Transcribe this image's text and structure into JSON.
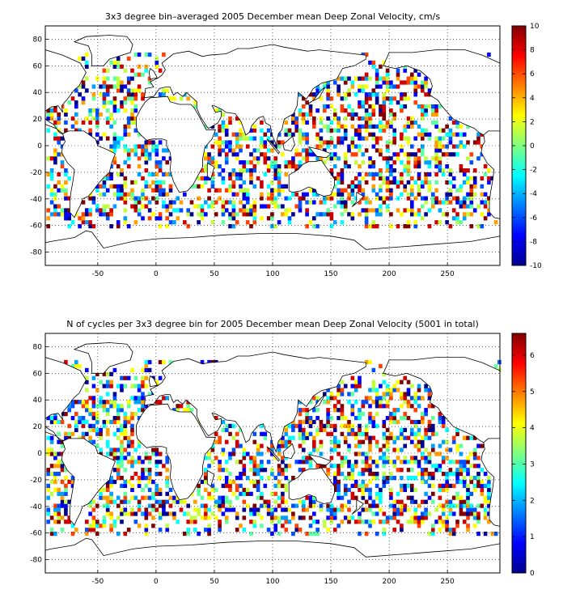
{
  "chart_data": [
    {
      "type": "heatmap",
      "title": "3x3 degree bin–averaged 2005 December mean Deep Zonal Velocity, cm/s",
      "xlabel": "",
      "ylabel": "",
      "xlim": [
        -95,
        295
      ],
      "ylim": [
        -90,
        90
      ],
      "x_ticks": [
        -50,
        0,
        50,
        100,
        150,
        200,
        250
      ],
      "y_ticks": [
        80,
        60,
        40,
        20,
        0,
        -20,
        -40,
        -60,
        -80
      ],
      "grid": true,
      "bin_size_deg": 3,
      "colorbar": {
        "range": [
          -10,
          10
        ],
        "ticks": [
          10,
          8,
          6,
          4,
          2,
          0,
          -2,
          -4,
          -6,
          -8,
          -10
        ],
        "colormap": "jet"
      }
    },
    {
      "type": "heatmap",
      "title": "N of cycles per 3x3 degree bin for 2005 December mean Deep Zonal Velocity (5001 in total)",
      "xlabel": "",
      "ylabel": "",
      "xlim": [
        -95,
        295
      ],
      "ylim": [
        -90,
        90
      ],
      "x_ticks": [
        -50,
        0,
        50,
        100,
        150,
        200,
        250
      ],
      "y_ticks": [
        80,
        60,
        40,
        20,
        0,
        -20,
        -40,
        -60,
        -80
      ],
      "grid": true,
      "bin_size_deg": 3,
      "total_cycles": 5001,
      "colorbar": {
        "range": [
          0,
          6.6
        ],
        "ticks": [
          6,
          5,
          4,
          3,
          2,
          1,
          0
        ],
        "colormap": "jet"
      }
    }
  ],
  "colors": {
    "jet": [
      "#00008f",
      "#0000ff",
      "#0080ff",
      "#00ffff",
      "#80ff80",
      "#ffff00",
      "#ff8000",
      "#ff0000",
      "#800000"
    ],
    "background": "#ffffff",
    "coast": "#000000"
  }
}
